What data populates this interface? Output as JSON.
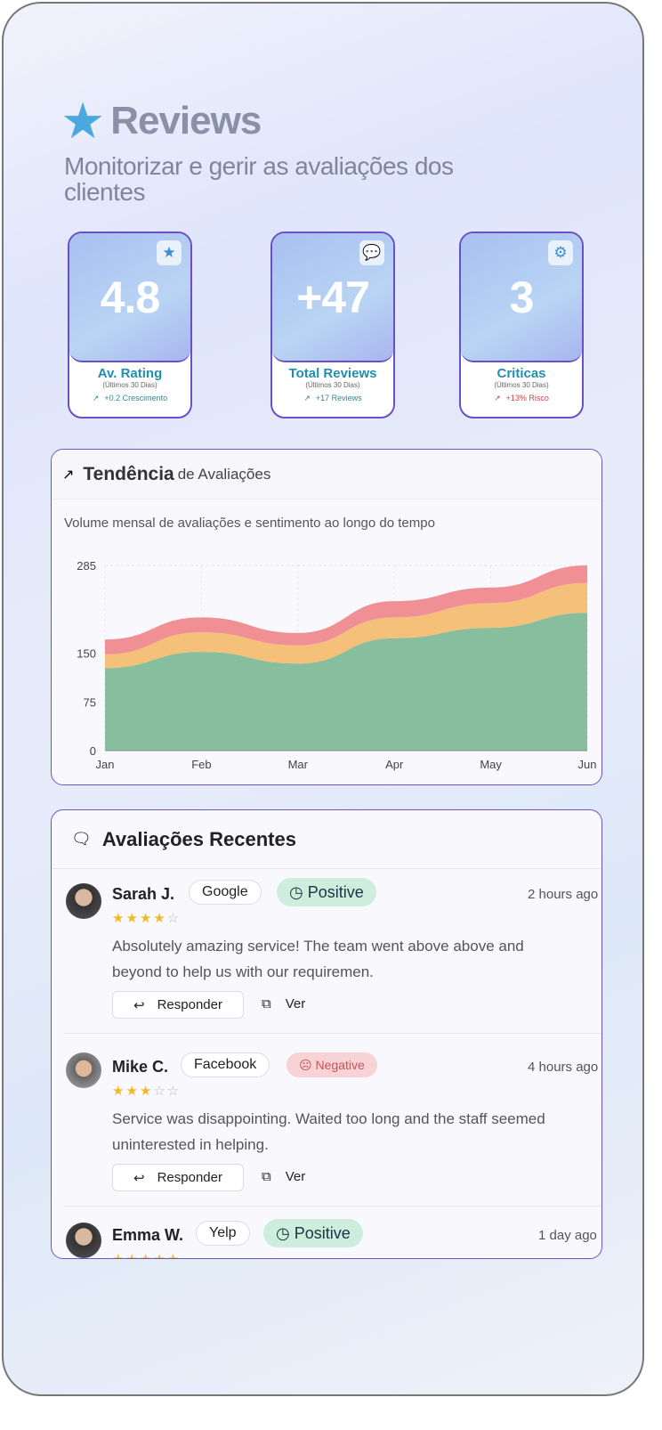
{
  "header": {
    "title": "Reviews",
    "subtitle": "Monitorizar e gerir as avaliações dos clientes",
    "icon": "star-icon"
  },
  "kpis": [
    {
      "value": "4.8",
      "label": "Av. Rating",
      "period": "(Últimos 30 Dias)",
      "trend": "+0.2 Crescimento",
      "icon": "star-icon"
    },
    {
      "value": "+47",
      "label": "Total Reviews",
      "period": "(Últimos 30 Dias)",
      "trend": "+17 Reviews",
      "icon": "message-icon"
    },
    {
      "value": "3",
      "label": "Criticas",
      "period": "(Últimos 30 Dias)",
      "trend": "+13% Risco",
      "icon": "alert-badge-icon"
    }
  ],
  "chart_card": {
    "title_bold": "Tendência",
    "title_rest": "de Avaliações",
    "description": "Volume mensal de avaliações e sentimento ao longo do tempo"
  },
  "chart_data": {
    "type": "area",
    "stacked": true,
    "categories": [
      "Jan",
      "Feb",
      "Mar",
      "Apr",
      "May",
      "Jun"
    ],
    "yticks": [
      0,
      75,
      150,
      285
    ],
    "ylim": [
      0,
      285
    ],
    "grid": true,
    "series": [
      {
        "color": "#7fba99",
        "values": [
          127,
          152,
          134,
          173,
          189,
          212
        ]
      },
      {
        "color": "#f4bd73",
        "values": [
          21,
          30,
          28,
          32,
          38,
          46
        ]
      },
      {
        "color": "#f08a8e",
        "values": [
          23,
          23,
          19,
          25,
          24,
          27
        ]
      }
    ]
  },
  "reviews_card": {
    "title": "Avaliações Recentes"
  },
  "reviews": [
    {
      "name": "Sarah J.",
      "source": "Google",
      "sentiment": "Positive",
      "time": "2 hours ago",
      "rating": 4,
      "text": "Absolutely amazing service! The team went above above and beyond to help us with our requiremen.",
      "reply": "Responder",
      "view": "Ver"
    },
    {
      "name": "Mike C.",
      "source": "Facebook",
      "sentiment": "Negative",
      "time": "4 hours ago",
      "rating": 3,
      "text": "Service was disappointing. Waited too long and the staff seemed uninterested in helping.",
      "reply": "Responder",
      "view": "Ver"
    },
    {
      "name": "Emma W.",
      "source": "Yelp",
      "sentiment": "Positive",
      "time": "1 day ago",
      "rating": 5
    }
  ]
}
